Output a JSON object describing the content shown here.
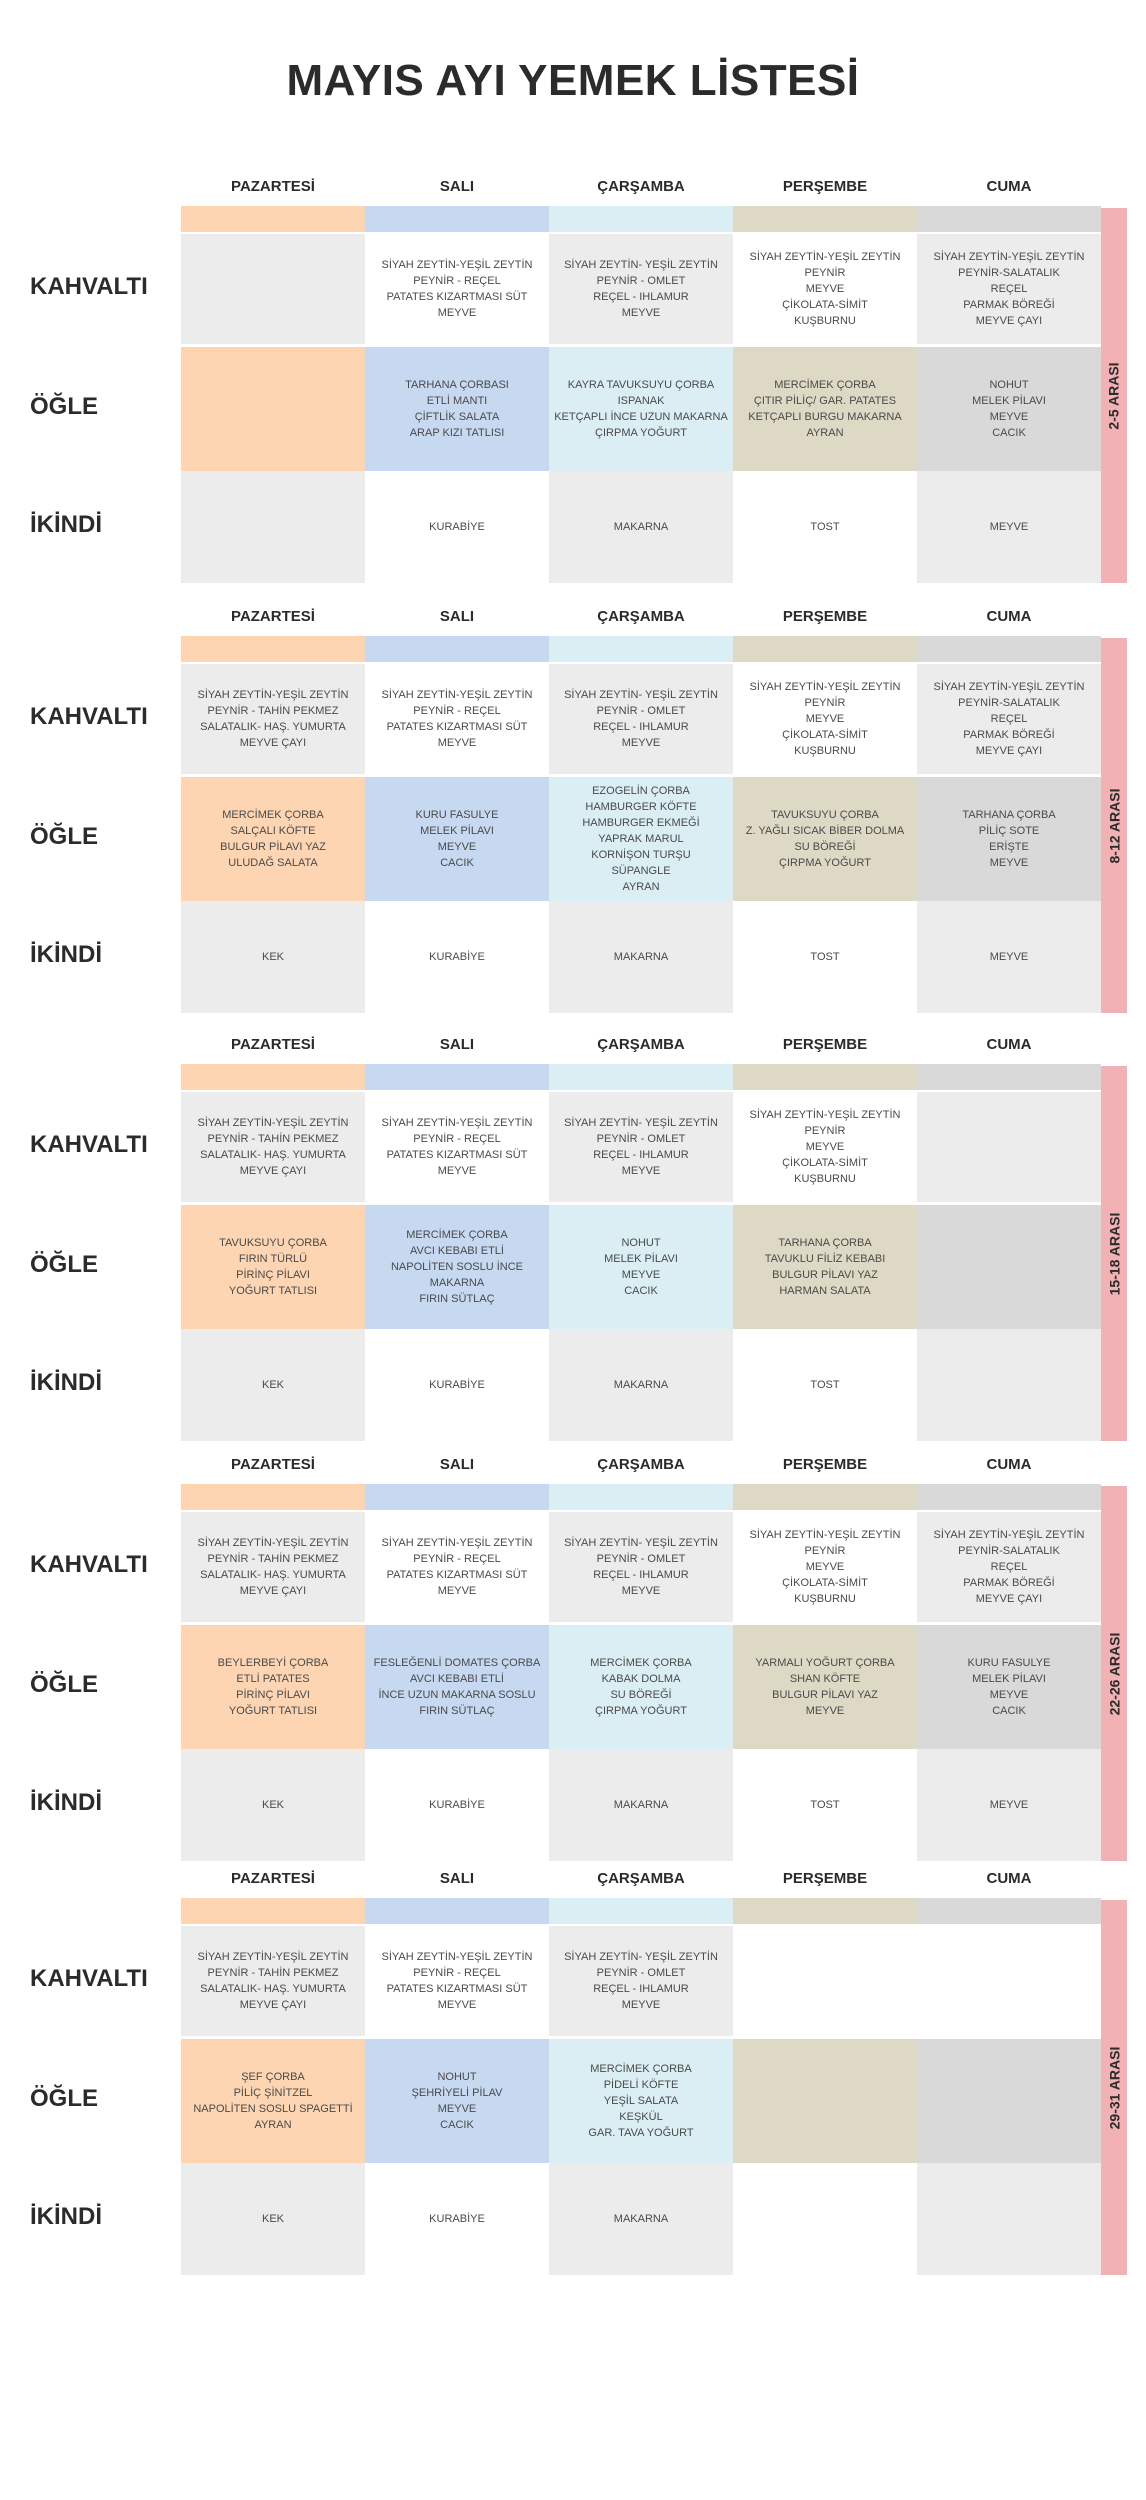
{
  "title": "MAYIS AYI YEMEK LİSTESİ",
  "days": [
    "PAZARTESİ",
    "SALI",
    "ÇARŞAMBA",
    "PERŞEMBE",
    "CUMA"
  ],
  "meals": [
    "KAHVALTI",
    "ÖĞLE",
    "İKİNDİ"
  ],
  "colors": {
    "peach": "#fdd5b3",
    "blue": "#c6d9f1",
    "lightblue": "#dbeef3",
    "khaki": "#ddd9c4",
    "grey": "#d9d9d9",
    "lightgrey": "#ebeceb",
    "white": "#ffffff",
    "band": "#f2b1b5"
  },
  "weeks": [
    {
      "range": "2-5 ARASI",
      "strip": [
        "peach",
        "blue",
        "lightblue",
        "khaki",
        "grey"
      ],
      "rows": [
        {
          "bg": [
            "lightgrey",
            "white",
            "lightgrey",
            "white",
            "lightgrey"
          ],
          "cells": [
            "",
            "SİYAH ZEYTİN-YEŞİL ZEYTİN\nPEYNİR - REÇEL\nPATATES KIZARTMASI SÜT\nMEYVE",
            "SİYAH ZEYTİN- YEŞİL ZEYTİN\nPEYNİR - OMLET\nREÇEL - IHLAMUR\nMEYVE",
            "SİYAH ZEYTİN-YEŞİL ZEYTİN\nPEYNİR\nMEYVE\nÇİKOLATA-SİMİT\nKUŞBURNU",
            "SİYAH ZEYTİN-YEŞİL ZEYTİN\nPEYNİR-SALATALIK\nREÇEL\nPARMAK BÖREĞİ\nMEYVE ÇAYI"
          ]
        },
        {
          "bg": [
            "peach",
            "blue",
            "lightblue",
            "khaki",
            "grey"
          ],
          "cells": [
            "",
            "TARHANA ÇORBASI\nETLİ MANTI\nÇİFTLİK SALATA\nARAP KIZI TATLISI",
            "KAYRA TAVUKSUYU ÇORBA\nISPANAK\nKETÇAPLI İNCE UZUN MAKARNA\nÇIRPMA YOĞURT",
            "MERCİMEK ÇORBA\nÇITIR PİLİÇ/ GAR. PATATES\nKETÇAPLI BURGU MAKARNA\nAYRAN",
            "NOHUT\nMELEK PİLAVI\nMEYVE\nCACIK"
          ]
        },
        {
          "bg": [
            "lightgrey",
            "white",
            "lightgrey",
            "white",
            "lightgrey"
          ],
          "cells": [
            "",
            "KURABİYE",
            "MAKARNA",
            "TOST",
            "MEYVE"
          ]
        }
      ]
    },
    {
      "range": "8-12 ARASI",
      "strip": [
        "peach",
        "blue",
        "lightblue",
        "khaki",
        "grey"
      ],
      "rows": [
        {
          "bg": [
            "lightgrey",
            "white",
            "lightgrey",
            "white",
            "lightgrey"
          ],
          "cells": [
            "SİYAH ZEYTİN-YEŞİL ZEYTİN\nPEYNİR - TAHİN PEKMEZ\nSALATALIK- HAŞ. YUMURTA\nMEYVE ÇAYI",
            "SİYAH ZEYTİN-YEŞİL ZEYTİN\nPEYNİR - REÇEL\nPATATES KIZARTMASI SÜT\nMEYVE",
            "SİYAH ZEYTİN- YEŞİL ZEYTİN\nPEYNİR - OMLET\nREÇEL - IHLAMUR\nMEYVE",
            "SİYAH ZEYTİN-YEŞİL ZEYTİN\nPEYNİR\nMEYVE\nÇİKOLATA-SİMİT\nKUŞBURNU",
            "SİYAH ZEYTİN-YEŞİL ZEYTİN\nPEYNİR-SALATALIK\nREÇEL\nPARMAK BÖREĞİ\nMEYVE ÇAYI"
          ]
        },
        {
          "bg": [
            "peach",
            "blue",
            "lightblue",
            "khaki",
            "grey"
          ],
          "cells": [
            "MERCİMEK ÇORBA\nSALÇALI KÖFTE\nBULGUR PİLAVI YAZ\nULUDAĞ SALATA",
            "KURU FASULYE\nMELEK PİLAVI\nMEYVE\nCACIK",
            "EZOGELİN ÇORBA\nHAMBURGER KÖFTE\nHAMBURGER EKMEĞİ\nYAPRAK MARUL\nKORNİŞON TURŞU\nSÜPANGLE\nAYRAN",
            "TAVUKSUYU ÇORBA\nZ. YAĞLI SICAK BİBER DOLMA\nSU BÖREĞİ\nÇIRPMA YOĞURT",
            "TARHANA ÇORBA\nPİLİÇ SOTE\nERİŞTE\nMEYVE"
          ]
        },
        {
          "bg": [
            "lightgrey",
            "white",
            "lightgrey",
            "white",
            "lightgrey"
          ],
          "cells": [
            "KEK",
            "KURABİYE",
            "MAKARNA",
            "TOST",
            "MEYVE"
          ]
        }
      ]
    },
    {
      "range": "15-18 ARASI",
      "strip": [
        "peach",
        "blue",
        "lightblue",
        "khaki",
        "grey"
      ],
      "rows": [
        {
          "bg": [
            "lightgrey",
            "white",
            "lightgrey",
            "white",
            "lightgrey"
          ],
          "cells": [
            "SİYAH ZEYTİN-YEŞİL ZEYTİN\nPEYNİR - TAHİN PEKMEZ\nSALATALIK- HAŞ. YUMURTA\nMEYVE ÇAYI",
            "SİYAH ZEYTİN-YEŞİL ZEYTİN\nPEYNİR - REÇEL\nPATATES KIZARTMASI SÜT\nMEYVE",
            "SİYAH ZEYTİN- YEŞİL ZEYTİN\nPEYNİR - OMLET\nREÇEL - IHLAMUR\nMEYVE",
            "SİYAH ZEYTİN-YEŞİL ZEYTİN\nPEYNİR\nMEYVE\nÇİKOLATA-SİMİT\nKUŞBURNU",
            ""
          ]
        },
        {
          "bg": [
            "peach",
            "blue",
            "lightblue",
            "khaki",
            "grey"
          ],
          "cells": [
            "TAVUKSUYU ÇORBA\nFIRIN TÜRLÜ\nPİRİNÇ PİLAVI\nYOĞURT TATLISI",
            "MERCİMEK ÇORBA\nAVCI KEBABI ETLİ\nNAPOLİTEN SOSLU İNCE MAKARNA\nFIRIN SÜTLAÇ",
            "NOHUT\nMELEK PİLAVI\nMEYVE\nCACIK",
            "TARHANA ÇORBA\nTAVUKLU FİLİZ KEBABI\nBULGUR PİLAVI YAZ\nHARMAN SALATA",
            ""
          ]
        },
        {
          "bg": [
            "lightgrey",
            "white",
            "lightgrey",
            "white",
            "lightgrey"
          ],
          "cells": [
            "KEK",
            "KURABİYE",
            "MAKARNA",
            "TOST",
            ""
          ]
        }
      ]
    },
    {
      "range": "22-26 ARASI",
      "strip": [
        "peach",
        "blue",
        "lightblue",
        "khaki",
        "grey"
      ],
      "rows": [
        {
          "bg": [
            "lightgrey",
            "white",
            "lightgrey",
            "white",
            "lightgrey"
          ],
          "cells": [
            "SİYAH ZEYTİN-YEŞİL ZEYTİN\nPEYNİR - TAHİN PEKMEZ\nSALATALIK- HAŞ. YUMURTA\nMEYVE ÇAYI",
            "SİYAH ZEYTİN-YEŞİL ZEYTİN\nPEYNİR - REÇEL\nPATATES KIZARTMASI SÜT\nMEYVE",
            "SİYAH ZEYTİN- YEŞİL ZEYTİN\nPEYNİR - OMLET\nREÇEL - IHLAMUR\nMEYVE",
            "SİYAH ZEYTİN-YEŞİL ZEYTİN\nPEYNİR\nMEYVE\nÇİKOLATA-SİMİT\nKUŞBURNU",
            "SİYAH ZEYTİN-YEŞİL ZEYTİN\nPEYNİR-SALATALIK\nREÇEL\nPARMAK BÖREĞİ\nMEYVE ÇAYI"
          ]
        },
        {
          "bg": [
            "peach",
            "blue",
            "lightblue",
            "khaki",
            "grey"
          ],
          "cells": [
            "BEYLERBEYİ ÇORBA\nETLİ PATATES\nPİRİNÇ PİLAVI\nYOĞURT TATLISI",
            "FESLEĞENLİ DOMATES ÇORBA\nAVCI KEBABI ETLİ\nİNCE UZUN MAKARNA SOSLU\nFIRIN SÜTLAÇ",
            "MERCİMEK ÇORBA\nKABAK DOLMA\nSU BÖREĞİ\nÇIRPMA YOĞURT",
            "YARMALI YOĞURT ÇORBA\nSHAN KÖFTE\nBULGUR PİLAVI YAZ\nMEYVE",
            "KURU FASULYE\nMELEK PİLAVI\nMEYVE\nCACIK"
          ]
        },
        {
          "bg": [
            "lightgrey",
            "white",
            "lightgrey",
            "white",
            "lightgrey"
          ],
          "cells": [
            "KEK",
            "KURABİYE",
            "MAKARNA",
            "TOST",
            "MEYVE"
          ]
        }
      ]
    },
    {
      "range": "29-31 ARASI",
      "strip": [
        "peach",
        "blue",
        "lightblue",
        "khaki",
        "grey"
      ],
      "rows": [
        {
          "bg": [
            "lightgrey",
            "white",
            "lightgrey",
            "white",
            "white"
          ],
          "cells": [
            "SİYAH ZEYTİN-YEŞİL ZEYTİN\nPEYNİR - TAHİN PEKMEZ\nSALATALIK- HAŞ. YUMURTA\nMEYVE ÇAYI",
            "SİYAH ZEYTİN-YEŞİL ZEYTİN\nPEYNİR - REÇEL\nPATATES KIZARTMASI SÜT\nMEYVE",
            "SİYAH ZEYTİN- YEŞİL ZEYTİN\nPEYNİR - OMLET\nREÇEL - IHLAMUR\nMEYVE",
            "",
            ""
          ]
        },
        {
          "bg": [
            "peach",
            "blue",
            "lightblue",
            "khaki",
            "grey"
          ],
          "cells": [
            "ŞEF ÇORBA\nPİLİÇ ŞİNİTZEL\nNAPOLİTEN SOSLU SPAGETTİ\nAYRAN",
            "NOHUT\nŞEHRİYELİ PİLAV\nMEYVE\nCACIK",
            "MERCİMEK ÇORBA\nPİDELİ KÖFTE\nYEŞİL SALATA\nKEŞKÜL\nGAR. TAVA YOĞURT",
            "",
            ""
          ]
        },
        {
          "bg": [
            "lightgrey",
            "white",
            "lightgrey",
            "white",
            "lightgrey"
          ],
          "cells": [
            "KEK",
            "KURABİYE",
            "MAKARNA",
            "",
            ""
          ]
        }
      ]
    }
  ]
}
